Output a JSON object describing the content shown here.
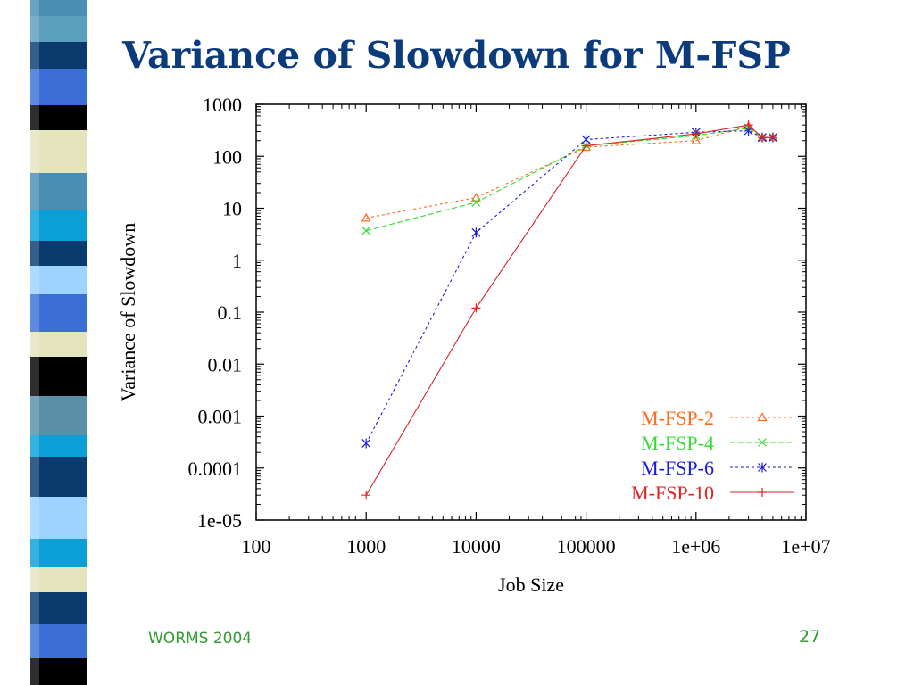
{
  "slide": {
    "title": "Variance of Slowdown for M-FSP",
    "footer_left": "WORMS 2004",
    "page_number": "27"
  },
  "chart_data": {
    "type": "line",
    "xlabel": "Job Size",
    "ylabel": "Variance of Slowdown",
    "xscale": "log",
    "yscale": "log",
    "xlim": [
      100,
      10000000
    ],
    "ylim": [
      1e-05,
      1000
    ],
    "xticks": [
      "100",
      "1000",
      "10000",
      "100000",
      "1e+06",
      "1e+07"
    ],
    "yticks": [
      "1e-05",
      "0.0001",
      "0.001",
      "0.01",
      "0.1",
      "1",
      "10",
      "100",
      "1000"
    ],
    "grid": false,
    "legend": "bottom-right",
    "series": [
      {
        "name": "M-FSP-2",
        "color": "#ff6a1a",
        "marker": "triangle",
        "dash": "dotted",
        "x": [
          1000,
          10000,
          100000,
          1000000,
          3000000,
          4000000,
          5000000
        ],
        "y": [
          6.5,
          16,
          150,
          200,
          380,
          230,
          230
        ]
      },
      {
        "name": "M-FSP-4",
        "color": "#33dd33",
        "marker": "x",
        "dash": "dashed",
        "x": [
          1000,
          10000,
          100000,
          1000000,
          3000000,
          4000000,
          5000000
        ],
        "y": [
          3.7,
          13,
          160,
          250,
          350,
          230,
          230
        ]
      },
      {
        "name": "M-FSP-6",
        "color": "#1a1add",
        "marker": "star",
        "dash": "dotted",
        "x": [
          1000,
          10000,
          100000,
          1000000,
          3000000,
          4000000,
          5000000
        ],
        "y": [
          0.0003,
          3.4,
          210,
          290,
          310,
          230,
          230
        ]
      },
      {
        "name": "M-FSP-10",
        "color": "#dd2222",
        "marker": "plus",
        "dash": "solid",
        "x": [
          1000,
          10000,
          100000,
          1000000,
          3000000,
          4000000,
          5000000
        ],
        "y": [
          3e-05,
          0.12,
          160,
          270,
          400,
          230,
          230
        ]
      }
    ]
  }
}
